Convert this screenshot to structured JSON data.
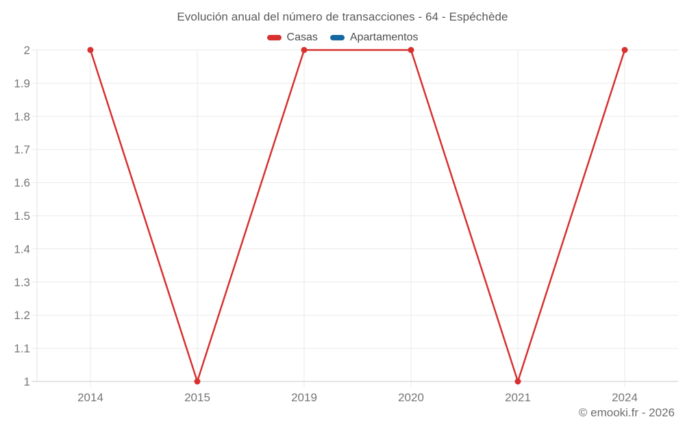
{
  "chart": {
    "title": "Evolución anual del número de transacciones - 64 - Espéchède",
    "attribution": "© emooki.fr - 2026"
  },
  "chart_data": {
    "type": "line",
    "title": "Evolución anual del número de transacciones - 64 - Espéchède",
    "categories": [
      "2014",
      "2015",
      "2019",
      "2020",
      "2021",
      "2024"
    ],
    "series": [
      {
        "name": "Casas",
        "color": "#d7302f",
        "values": [
          2,
          1,
          2,
          2,
          1,
          2
        ]
      },
      {
        "name": "Apartamentos",
        "color": "#1668a0",
        "values": []
      }
    ],
    "xlabel": "",
    "ylabel": "",
    "ylim": [
      1,
      2
    ],
    "ytick_step": 0.1,
    "ytick_labels": [
      "1",
      "1.1",
      "1.2",
      "1.3",
      "1.4",
      "1.5",
      "1.6",
      "1.7",
      "1.8",
      "1.9",
      "2"
    ],
    "grid": true,
    "legend_position": "top",
    "marker": "circle",
    "attribution": "© emooki.fr - 2026",
    "colors": {
      "grid": "#e9e9e9",
      "axis": "#c9c9c9",
      "axis_vertical": "#e0e0e0",
      "tick_text": "#757575",
      "title_text": "#595959",
      "footer_text": "#6e6e6e"
    }
  }
}
